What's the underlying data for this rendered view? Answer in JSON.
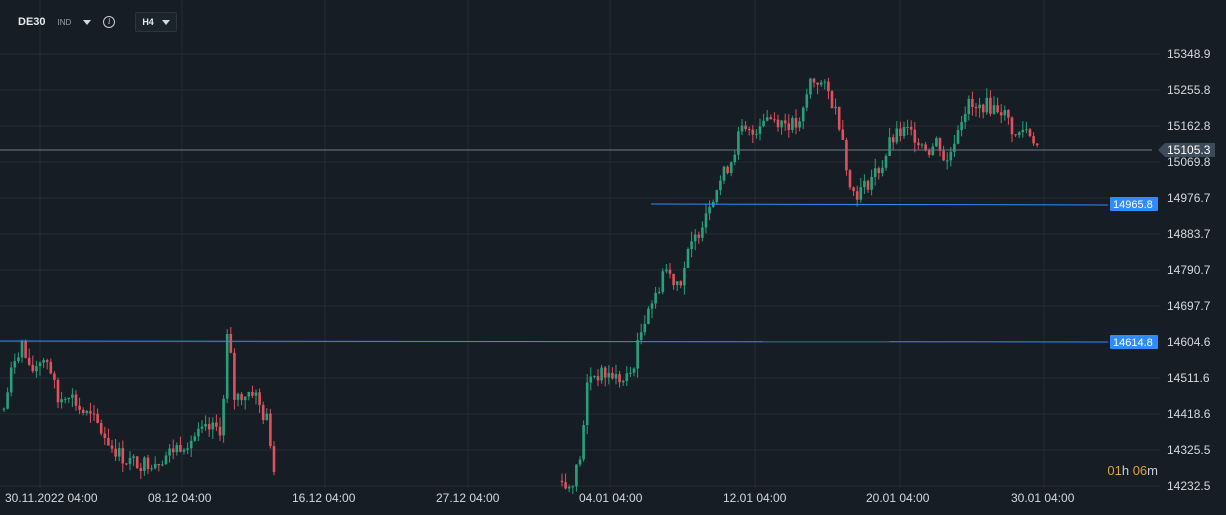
{
  "toolbar": {
    "symbol": "DE30",
    "symbol_type": "IND",
    "info_icon": "info-icon",
    "timeframe": "H4"
  },
  "countdown": {
    "hours": "01",
    "hours_unit": "h",
    "minutes": "06",
    "minutes_unit": "m"
  },
  "colors": {
    "background": "#161d24",
    "grid": "#222b33",
    "up": "#26a17a",
    "down": "#e0505e",
    "level_line": "#2e8cff",
    "price_line": "#6f7c88"
  },
  "chart_data": {
    "type": "candlestick",
    "y_ticks": [
      "15348.9",
      "15255.8",
      "15162.8",
      "15069.8",
      "14976.7",
      "14883.7",
      "14790.7",
      "14697.7",
      "14604.6",
      "14511.6",
      "14418.6",
      "14325.5",
      "14232.5"
    ],
    "y_range": [
      14220,
      15380
    ],
    "x_ticks": [
      "30.11.2022  04:00",
      "08.12  04:00",
      "16.12  04:00",
      "27.12  04:00",
      "04.01  04:00",
      "12.01  04:00",
      "20.01  04:00",
      "30.01  04:00"
    ],
    "current_price": "15105.3",
    "levels": [
      {
        "label": "14965.8",
        "value": 14965.8
      },
      {
        "label": "14614.8",
        "value": 14614.8
      }
    ],
    "segments": [
      {
        "index_start": 0,
        "count": 70,
        "start": 14440,
        "end": 14220,
        "shape": "dec1"
      },
      {
        "index_start": 135,
        "count": 225,
        "start": 14220,
        "end": 15105,
        "shape": "rally"
      }
    ]
  }
}
